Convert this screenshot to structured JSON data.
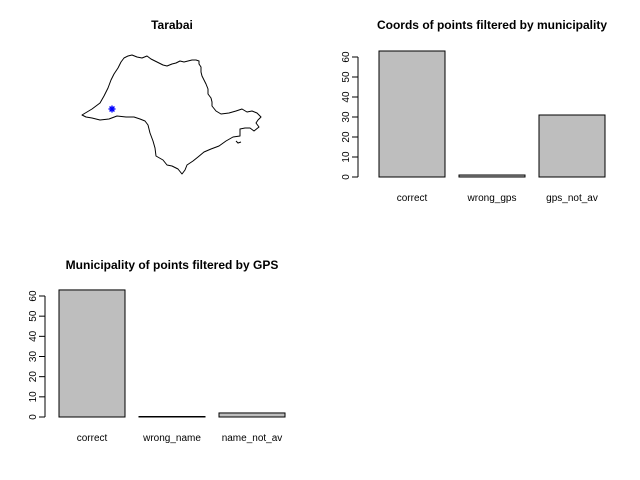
{
  "chart_data": [
    {
      "type": "map",
      "title": "Tarabai",
      "point_color": "#0000ff",
      "outline_color": "#000000"
    },
    {
      "type": "bar",
      "title": "Coords of points filtered by municipality",
      "categories": [
        "correct",
        "wrong_gps",
        "gps_not_av"
      ],
      "values": [
        63,
        1,
        31
      ],
      "ylim": [
        0,
        63
      ],
      "yticks": [
        "0",
        "10",
        "20",
        "30",
        "40",
        "50",
        "60"
      ],
      "bar_color": "#bebebe"
    },
    {
      "type": "bar",
      "title": "Municipality of points filtered by GPS",
      "categories": [
        "correct",
        "wrong_name",
        "name_not_av"
      ],
      "values": [
        63,
        0,
        2
      ],
      "ylim": [
        0,
        63
      ],
      "yticks": [
        "0",
        "10",
        "20",
        "30",
        "40",
        "50",
        "60"
      ],
      "bar_color": "#bebebe"
    }
  ]
}
